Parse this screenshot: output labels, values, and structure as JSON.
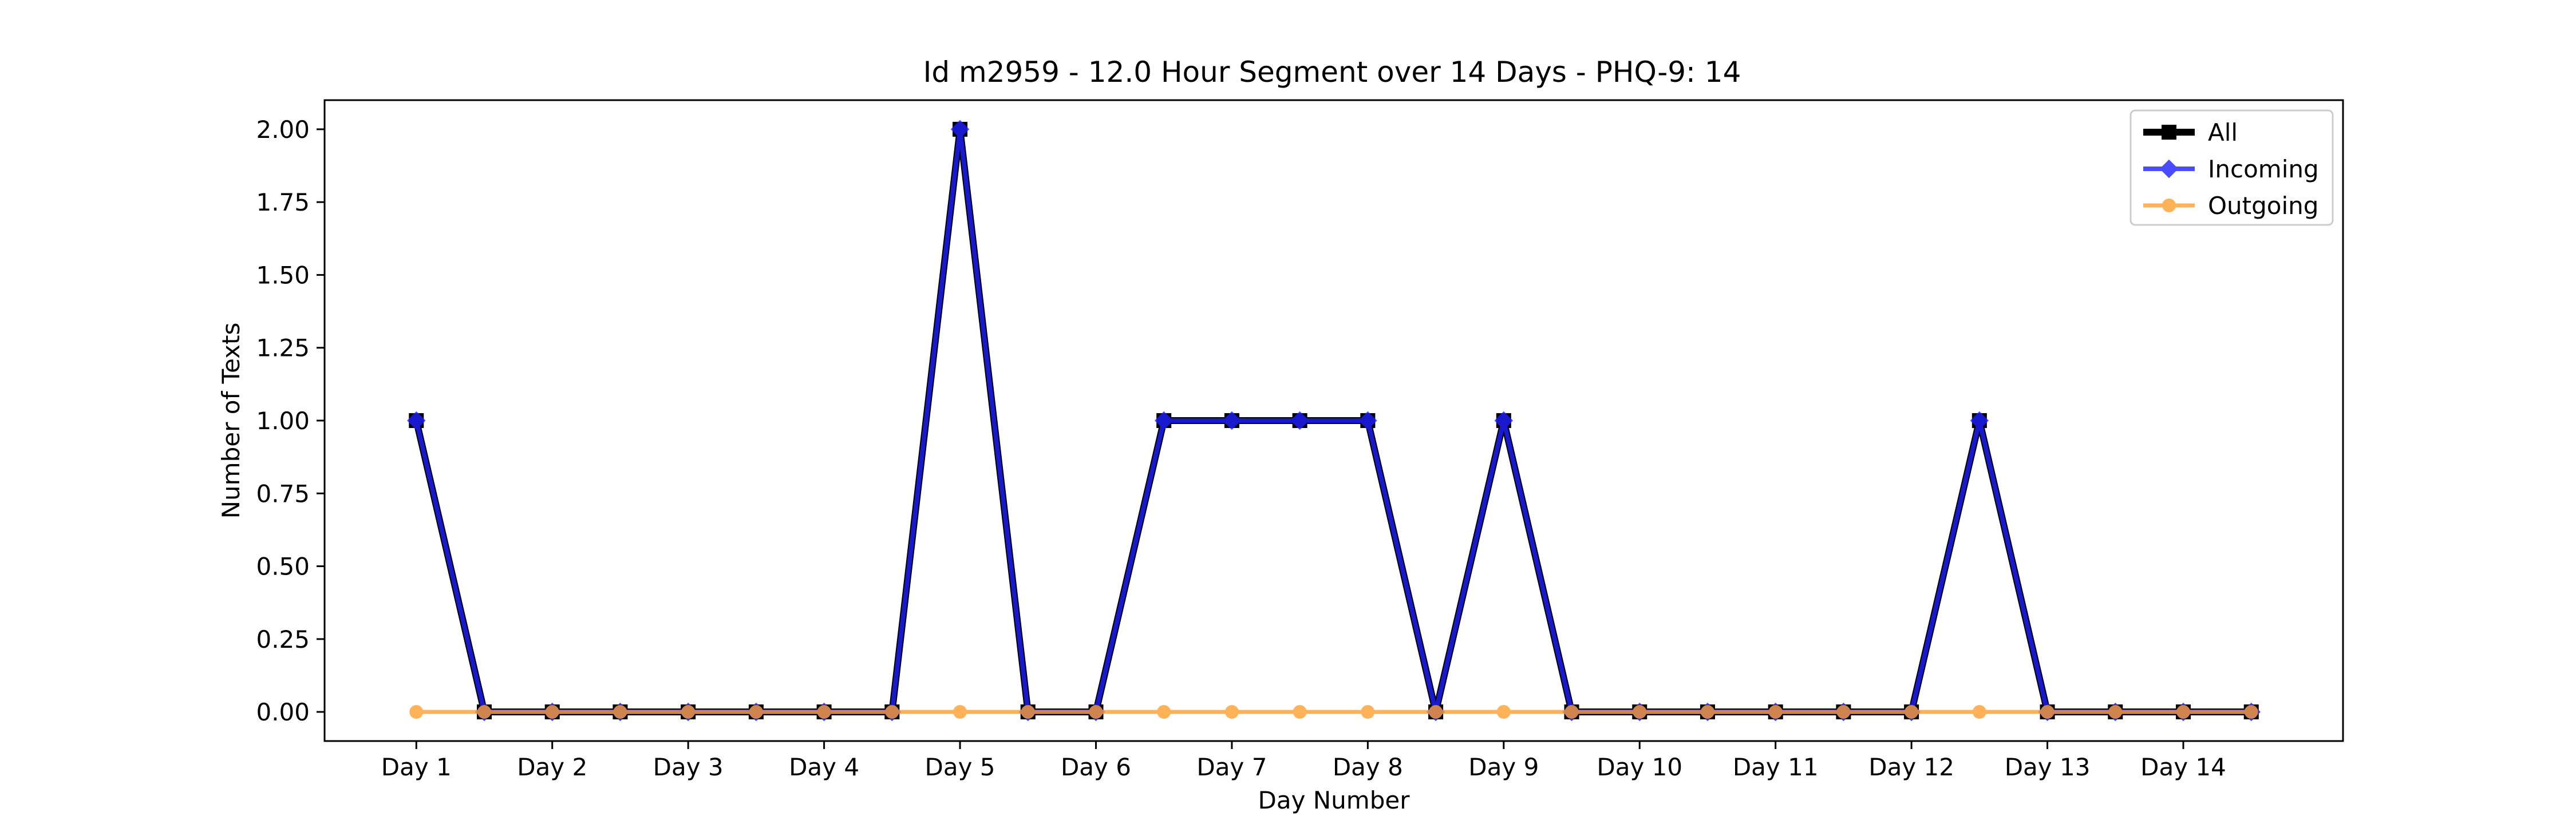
{
  "chart_data": {
    "type": "line",
    "title": "Id m2959 - 12.0 Hour Segment over 14 Days - PHQ-9: 14",
    "xlabel": "Day Number",
    "ylabel": "Number of Texts",
    "x_tick_labels": [
      "Day 1",
      "Day 2",
      "Day 3",
      "Day 4",
      "Day 5",
      "Day 6",
      "Day 7",
      "Day 8",
      "Day 9",
      "Day 10",
      "Day 11",
      "Day 12",
      "Day 13",
      "Day 14"
    ],
    "x_tick_positions": [
      0,
      2,
      4,
      6,
      8,
      10,
      12,
      14,
      16,
      18,
      20,
      22,
      24,
      26
    ],
    "x": [
      0,
      1,
      2,
      3,
      4,
      5,
      6,
      7,
      8,
      9,
      10,
      11,
      12,
      13,
      14,
      15,
      16,
      17,
      18,
      19,
      20,
      21,
      22,
      23,
      24,
      25,
      26,
      27
    ],
    "xlim": [
      -1.35,
      28.35
    ],
    "ylim": [
      -0.1,
      2.1
    ],
    "y_ticks": [
      0.0,
      0.25,
      0.5,
      0.75,
      1.0,
      1.25,
      1.5,
      1.75,
      2.0
    ],
    "y_tick_labels": [
      "0.00",
      "0.25",
      "0.50",
      "0.75",
      "1.00",
      "1.25",
      "1.50",
      "1.75",
      "2.00"
    ],
    "legend_position": "top-right",
    "grid": false,
    "series": [
      {
        "name": "All",
        "color": "#000000",
        "marker": "square",
        "values": [
          1,
          0,
          0,
          0,
          0,
          0,
          0,
          0,
          2,
          0,
          0,
          1,
          1,
          1,
          1,
          0,
          1,
          0,
          0,
          0,
          0,
          0,
          0,
          1,
          0,
          0,
          0,
          0
        ]
      },
      {
        "name": "Incoming",
        "color": "#1f1fff",
        "marker": "diamond",
        "values": [
          1,
          0,
          0,
          0,
          0,
          0,
          0,
          0,
          2,
          0,
          0,
          1,
          1,
          1,
          1,
          0,
          1,
          0,
          0,
          0,
          0,
          0,
          0,
          1,
          0,
          0,
          0,
          0
        ]
      },
      {
        "name": "Outgoing",
        "color": "#ff9f2e",
        "marker": "circle",
        "values": [
          0,
          0,
          0,
          0,
          0,
          0,
          0,
          0,
          0,
          0,
          0,
          0,
          0,
          0,
          0,
          0,
          0,
          0,
          0,
          0,
          0,
          0,
          0,
          0,
          0,
          0,
          0,
          0
        ]
      }
    ]
  }
}
